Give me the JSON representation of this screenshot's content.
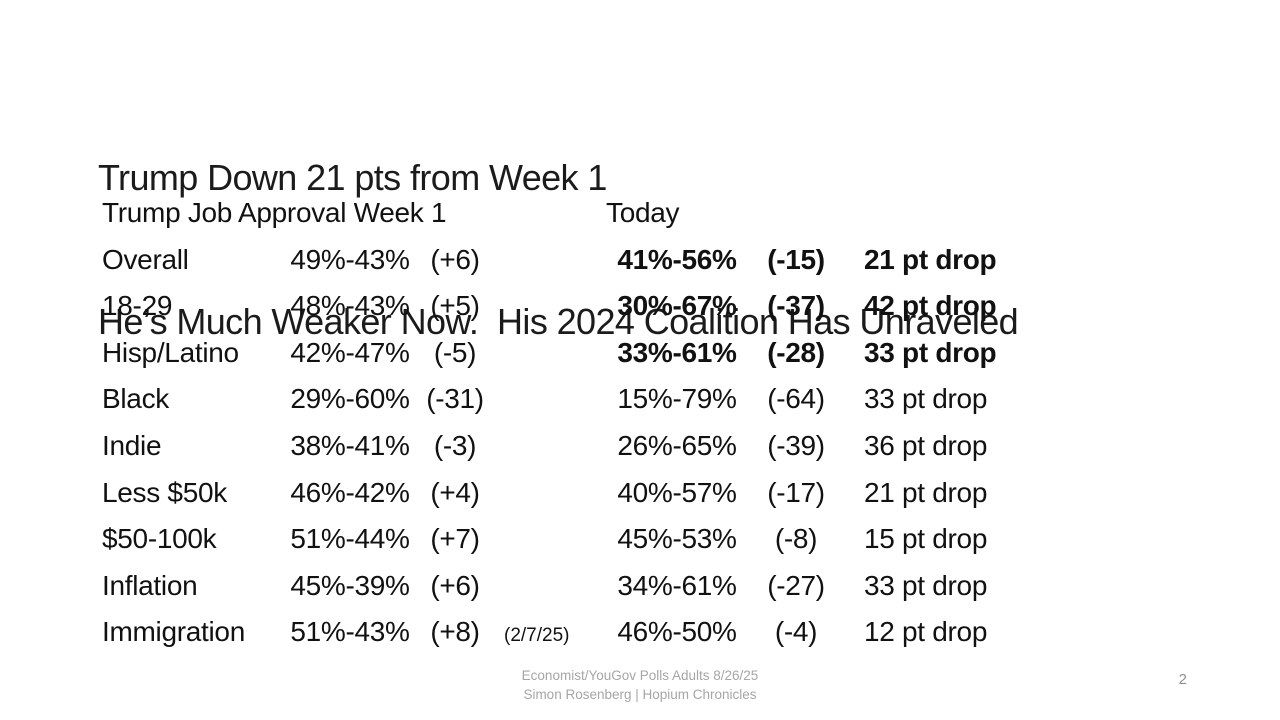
{
  "slide": {
    "title_line1": "Trump Down 21 pts from Week 1",
    "title_line2": "He’s Much Weaker Now.  His 2024 Coalition Has Unraveled"
  },
  "table": {
    "header_week1": "Trump Job Approval Week 1",
    "header_today": "Today",
    "rows": [
      {
        "label": "Overall",
        "week1": "49%-43%",
        "week1_change": "(+6)",
        "week1_note": "",
        "today": "41%-56%",
        "today_change": "(-15)",
        "drop": "21 pt drop",
        "bold": true
      },
      {
        "label": "18-29",
        "week1": "48%-43%",
        "week1_change": "(+5)",
        "week1_note": "",
        "today": "30%-67%",
        "today_change": "(-37)",
        "drop": "42 pt drop",
        "bold": true
      },
      {
        "label": "Hisp/Latino",
        "week1": "42%-47%",
        "week1_change": "(-5)",
        "week1_note": "",
        "today": "33%-61%",
        "today_change": "(-28)",
        "drop": "33 pt drop",
        "bold": true
      },
      {
        "label": "Black",
        "week1": "29%-60%",
        "week1_change": "(-31)",
        "week1_note": "",
        "today": "15%-79%",
        "today_change": "(-64)",
        "drop": "33 pt drop",
        "bold": false
      },
      {
        "label": "Indie",
        "week1": "38%-41%",
        "week1_change": "(-3)",
        "week1_note": "",
        "today": "26%-65%",
        "today_change": "(-39)",
        "drop": "36 pt drop",
        "bold": false
      },
      {
        "label": "Less $50k",
        "week1": "46%-42%",
        "week1_change": "(+4)",
        "week1_note": "",
        "today": "40%-57%",
        "today_change": "(-17)",
        "drop": "21 pt drop",
        "bold": false
      },
      {
        "label": "$50-100k",
        "week1": "51%-44%",
        "week1_change": "(+7)",
        "week1_note": "",
        "today": "45%-53%",
        "today_change": "(-8)",
        "drop": "15 pt drop",
        "bold": false
      },
      {
        "label": "Inflation",
        "week1": "45%-39%",
        "week1_change": "(+6)",
        "week1_note": "",
        "today": "34%-61%",
        "today_change": "(-27)",
        "drop": "33 pt drop",
        "bold": false
      },
      {
        "label": "Immigration",
        "week1": "51%-43%",
        "week1_change": "(+8)",
        "week1_note": "(2/7/25)",
        "today": "46%-50%",
        "today_change": "(-4)",
        "drop": "12 pt drop",
        "bold": false
      }
    ]
  },
  "footer": {
    "line1": "Economist/YouGov Polls Adults 8/26/25",
    "line2": "Simon Rosenberg | Hopium Chronicles",
    "page_number": "2"
  },
  "colors": {
    "text": "#111111",
    "muted_footer": "#a6a6a6",
    "page_number": "#8f8f8f",
    "background": "#ffffff"
  }
}
